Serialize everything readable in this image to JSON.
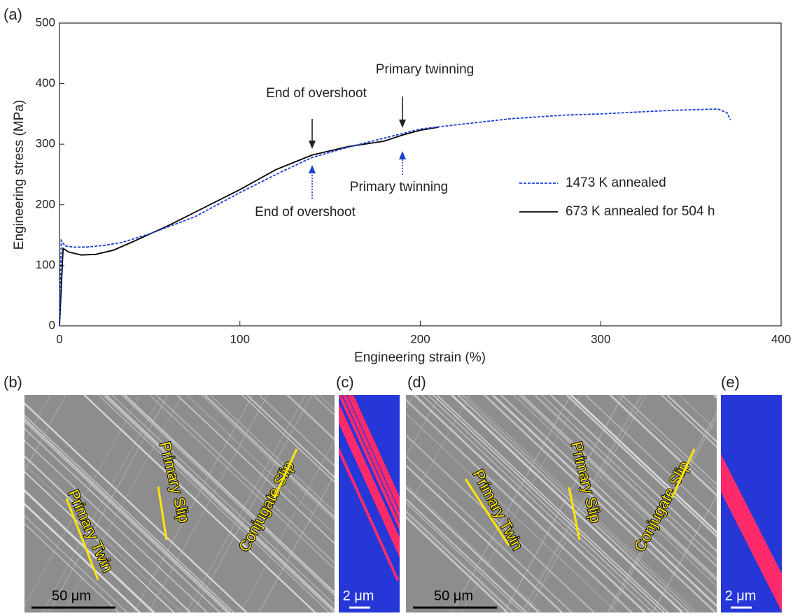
{
  "chart_data": {
    "type": "line",
    "xlabel": "Engineering strain (%)",
    "ylabel": "Engineering stress (MPa)",
    "xlim": [
      0,
      400
    ],
    "ylim": [
      0,
      500
    ],
    "xticks": [
      0,
      100,
      200,
      300,
      400
    ],
    "yticks": [
      0,
      100,
      200,
      300,
      400,
      500
    ],
    "grid": false,
    "legend": "right",
    "series": [
      {
        "name": "1473 K annealed",
        "color": "#1a3fd6",
        "dash": true,
        "x": [
          0,
          1,
          3,
          8,
          15,
          25,
          35,
          50,
          75,
          100,
          120,
          140,
          160,
          180,
          200,
          220,
          250,
          280,
          300,
          340,
          365,
          370,
          372
        ],
        "values": [
          0,
          141,
          132,
          130,
          130,
          133,
          138,
          152,
          180,
          220,
          250,
          278,
          295,
          310,
          325,
          332,
          342,
          348,
          350,
          356,
          358,
          352,
          340
        ]
      },
      {
        "name": "673 K annealed for 504 h",
        "color": "#000000",
        "dash": false,
        "x": [
          0,
          2,
          5,
          12,
          20,
          30,
          40,
          60,
          80,
          100,
          120,
          140,
          160,
          180,
          190,
          200,
          210
        ],
        "values": [
          0,
          128,
          122,
          117,
          118,
          125,
          138,
          165,
          195,
          225,
          258,
          282,
          296,
          305,
          315,
          323,
          328
        ]
      }
    ],
    "annotations": [
      "Primary twinning",
      "End of overshoot",
      "Primary twinning",
      "End of overshoot"
    ]
  },
  "panel_labels": [
    "(a)",
    "(b)",
    "(c)",
    "(d)",
    "(e)"
  ],
  "micrographs": [
    {
      "labels": [
        "Primary Twin",
        "Primary Slip",
        "Conjugate Slip"
      ],
      "scale_bar": "50 μm"
    },
    {
      "scale_bar": "2 μm"
    },
    {
      "labels": [
        "Primary Twin",
        "Primary Slip",
        "Conjugate Slip"
      ],
      "scale_bar": "50 μm"
    },
    {
      "scale_bar": "2 μm"
    }
  ]
}
